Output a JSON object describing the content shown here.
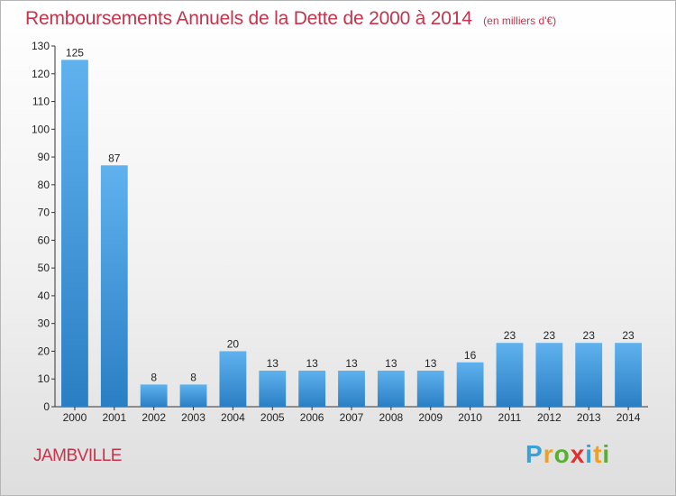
{
  "header": {
    "title": "Remboursements Annuels de la Dette de 2000 à 2014",
    "unit": "(en milliers d'€)"
  },
  "footer": {
    "commune": "JAMBVILLE",
    "logo": [
      "P",
      "r",
      "o",
      "x",
      "i",
      "t",
      "i"
    ],
    "logo_colors": [
      "#3aa0d8",
      "#f0a020",
      "#58b030",
      "#e03030",
      "#3aa0d8",
      "#f0a020",
      "#58b030"
    ]
  },
  "chart_data": {
    "type": "bar",
    "title": "Remboursements Annuels de la Dette de 2000 à 2014",
    "xlabel": "",
    "ylabel": "",
    "categories": [
      "2000",
      "2001",
      "2002",
      "2003",
      "2004",
      "2005",
      "2006",
      "2007",
      "2008",
      "2009",
      "2010",
      "2011",
      "2012",
      "2013",
      "2014"
    ],
    "values": [
      125,
      87,
      8,
      8,
      20,
      13,
      13,
      13,
      13,
      13,
      16,
      23,
      23,
      23,
      23
    ],
    "ylim": [
      0,
      130
    ],
    "yticks": [
      0,
      10,
      20,
      30,
      40,
      50,
      60,
      70,
      80,
      90,
      100,
      110,
      120,
      130
    ],
    "grid": false,
    "bar_color_light": "#5fb2ee",
    "bar_color_dark": "#2a7fc4"
  }
}
